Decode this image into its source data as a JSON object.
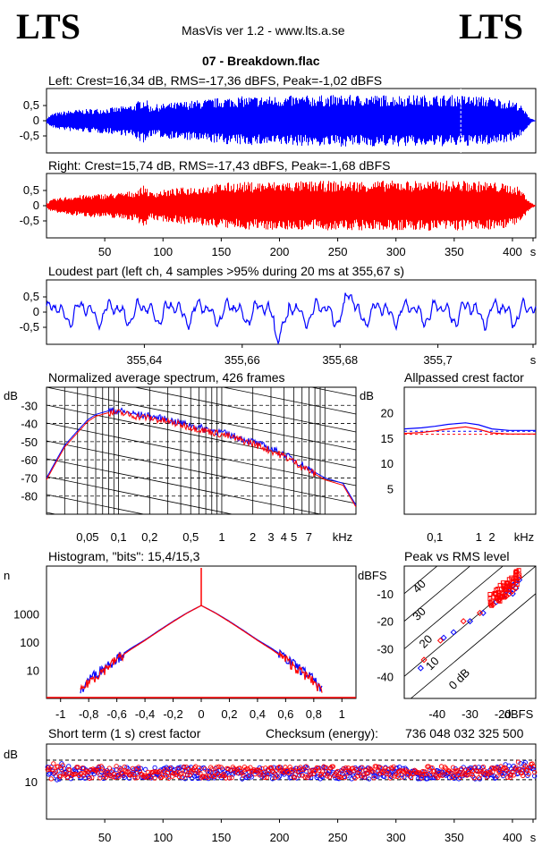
{
  "header": {
    "logo_left": "LTS",
    "logo_right": "LTS",
    "app_title": "MasVis ver 1.2 - www.lts.a.se",
    "file_title": "07 - Breakdown.flac"
  },
  "colors": {
    "left": "#0000ff",
    "right": "#ff0000",
    "grid": "#000000"
  },
  "chart_data": [
    {
      "id": "left-waveform",
      "type": "area",
      "title": "Left: Crest=16,34 dB, RMS=-17,36 dBFS, Peak=-1,02 dBFS",
      "y_ticks": [
        "0,5",
        "0",
        "-0,5"
      ],
      "ylim": [
        -1,
        1
      ],
      "xlim": [
        0,
        420
      ],
      "envelope_x": [
        0,
        5,
        20,
        40,
        60,
        75,
        80,
        85,
        88,
        95,
        120,
        160,
        200,
        250,
        300,
        350,
        380,
        395,
        405,
        410,
        415,
        420
      ],
      "envelope_y": [
        0.1,
        0.25,
        0.35,
        0.4,
        0.45,
        0.55,
        0.7,
        0.75,
        0.5,
        0.55,
        0.65,
        0.8,
        0.82,
        0.85,
        0.85,
        0.85,
        0.8,
        0.7,
        0.6,
        0.35,
        0.1,
        0.0
      ],
      "marker_x": 355.67
    },
    {
      "id": "right-waveform",
      "type": "area",
      "title": "Right: Crest=15,74 dB, RMS=-17,43 dBFS, Peak=-1,68 dBFS",
      "y_ticks": [
        "0,5",
        "0",
        "-0,5"
      ],
      "ylim": [
        -1,
        1
      ],
      "xlim": [
        0,
        420
      ],
      "x_ticks": [
        "50",
        "100",
        "150",
        "200",
        "250",
        "300",
        "350",
        "400",
        "s"
      ],
      "envelope_x": [
        0,
        5,
        20,
        40,
        60,
        75,
        80,
        85,
        88,
        95,
        120,
        160,
        200,
        250,
        300,
        350,
        380,
        395,
        405,
        410,
        415,
        420
      ],
      "envelope_y": [
        0.1,
        0.22,
        0.32,
        0.38,
        0.42,
        0.5,
        0.6,
        0.7,
        0.45,
        0.5,
        0.62,
        0.78,
        0.8,
        0.82,
        0.83,
        0.83,
        0.8,
        0.72,
        0.62,
        0.4,
        0.12,
        0.0
      ]
    },
    {
      "id": "loudest-part",
      "type": "line",
      "title": "Loudest part (left  ch, 4 samples >95% during 20 ms at 355,67 s)",
      "y_ticks": [
        "0,5",
        "0",
        "-0,5"
      ],
      "ylim": [
        -1,
        1
      ],
      "xlim": [
        355.62,
        355.72
      ],
      "x_ticks": [
        "355,64",
        "355,66",
        "355,68",
        "355,7",
        "s"
      ]
    },
    {
      "id": "average-spectrum",
      "type": "line",
      "title": "Normalized average spectrum, 426 frames",
      "ylabel": "dB",
      "xlabel": "kHz",
      "y_ticks": [
        "-30",
        "-40",
        "-50",
        "-60",
        "-70",
        "-80"
      ],
      "x_ticks": [
        "0,05",
        "0,1",
        "0,2",
        "0,5",
        "1",
        "2",
        "3",
        "4",
        "5",
        "7",
        "kHz"
      ],
      "freq_khz": [
        0.02,
        0.025,
        0.03,
        0.04,
        0.05,
        0.06,
        0.08,
        0.1,
        0.15,
        0.2,
        0.3,
        0.5,
        0.7,
        1,
        1.5,
        2,
        3,
        4,
        5,
        7,
        10,
        15,
        20
      ],
      "series": [
        {
          "name": "left",
          "values": [
            -70,
            -60,
            -52,
            -44,
            -38,
            -35,
            -33,
            -33,
            -35,
            -36,
            -38,
            -41,
            -43,
            -45,
            -48,
            -50,
            -54,
            -57,
            -60,
            -65,
            -70,
            -73,
            -85
          ]
        },
        {
          "name": "right",
          "values": [
            -71,
            -61,
            -53,
            -45,
            -39,
            -36,
            -34,
            -34,
            -36,
            -37,
            -39,
            -42,
            -44,
            -46,
            -49,
            -51,
            -55,
            -58,
            -61,
            -66,
            -71,
            -74,
            -86
          ]
        }
      ]
    },
    {
      "id": "allpassed-crest",
      "type": "line",
      "title": "Allpassed crest factor",
      "ylabel": "dB",
      "xlabel": "kHz",
      "y_ticks": [
        "20",
        "15",
        "10",
        "5"
      ],
      "ylim": [
        0,
        25
      ],
      "x_ticks": [
        "0,1",
        "1",
        "2",
        "kHz"
      ],
      "freq_khz": [
        0.02,
        0.05,
        0.1,
        0.2,
        0.5,
        1,
        2,
        5,
        10,
        20
      ],
      "series": [
        {
          "name": "left",
          "values": [
            16.8,
            17.0,
            17.3,
            17.7,
            18.0,
            17.6,
            16.8,
            16.5,
            16.5,
            16.5
          ]
        },
        {
          "name": "right",
          "values": [
            15.9,
            16.1,
            16.4,
            16.8,
            17.2,
            16.7,
            16.0,
            15.8,
            15.8,
            15.8
          ]
        }
      ],
      "reference_lines": [
        16.34,
        15.74
      ]
    },
    {
      "id": "histogram",
      "type": "line",
      "title": "Histogram, \"bits\": 15,4/15,3",
      "ylabel": "n",
      "y_ticks": [
        "1000",
        "100",
        "10"
      ],
      "x_ticks": [
        "-1",
        "-0,8",
        "-0,6",
        "-0,4",
        "-0,2",
        "0",
        "0,2",
        "0,4",
        "0,6",
        "0,8",
        "1"
      ],
      "x": [
        -0.85,
        -0.8,
        -0.7,
        -0.6,
        -0.5,
        -0.4,
        -0.3,
        -0.2,
        -0.1,
        0,
        0.1,
        0.2,
        0.3,
        0.4,
        0.5,
        0.6,
        0.7,
        0.8,
        0.85
      ],
      "series": [
        {
          "name": "left",
          "values": [
            2,
            5,
            12,
            28,
            60,
            120,
            260,
            550,
            1100,
            2000,
            1100,
            550,
            260,
            120,
            60,
            28,
            12,
            5,
            2
          ]
        },
        {
          "name": "right",
          "values": [
            2,
            4,
            10,
            25,
            55,
            115,
            250,
            530,
            1080,
            2000,
            1080,
            530,
            250,
            115,
            55,
            25,
            10,
            4,
            2
          ]
        }
      ]
    },
    {
      "id": "peak-vs-rms",
      "type": "scatter",
      "title": "Peak vs RMS level",
      "ylabel": "dBFS",
      "xlabel": "dBFS",
      "y_ticks": [
        "-10",
        "-20",
        "-30",
        "-40"
      ],
      "x_ticks": [
        "-40",
        "-30",
        "-20"
      ],
      "diagonal_labels": [
        "40",
        "30",
        "20",
        "10",
        "0 dB"
      ],
      "xlim": [
        -50,
        -10
      ],
      "ylim": [
        -48,
        0
      ],
      "series": [
        {
          "name": "left",
          "points": [
            [
              -45,
              -37
            ],
            [
              -38,
              -26
            ],
            [
              -35,
              -24
            ],
            [
              -30,
              -20
            ],
            [
              -26,
              -17
            ],
            [
              -22,
              -13
            ],
            [
              -20,
              -11
            ],
            [
              -19,
              -9
            ],
            [
              -18,
              -8
            ],
            [
              -17,
              -7
            ],
            [
              -16,
              -6
            ],
            [
              -15,
              -5
            ],
            [
              -17,
              -10
            ],
            [
              -18,
              -9
            ],
            [
              -16,
              -8
            ]
          ]
        },
        {
          "name": "right",
          "points": [
            [
              -44,
              -34
            ],
            [
              -39,
              -27
            ],
            [
              -32,
              -20
            ],
            [
              -27,
              -17
            ],
            [
              -23,
              -14
            ],
            [
              -21,
              -12
            ],
            [
              -20,
              -10
            ],
            [
              -19,
              -8
            ],
            [
              -18,
              -7
            ],
            [
              -17,
              -6
            ],
            [
              -16,
              -5
            ],
            [
              -15,
              -4
            ],
            [
              -18,
              -10
            ],
            [
              -19,
              -11
            ],
            [
              -17,
              -9
            ]
          ]
        }
      ]
    },
    {
      "id": "short-term-crest",
      "type": "scatter",
      "title": "Short term (1 s) crest factor",
      "checksum_label": "Checksum (energy):",
      "checksum_value": "736 048 032 325 500",
      "ylabel": "dB",
      "y_ticks": [
        "10"
      ],
      "x_ticks": [
        "50",
        "100",
        "150",
        "200",
        "250",
        "300",
        "350",
        "400",
        "s"
      ],
      "xlim": [
        0,
        420
      ],
      "ylim": [
        0,
        20
      ],
      "dashed_lines": [
        15.7,
        10.5
      ],
      "series": [
        {
          "name": "left",
          "mean": 12.3,
          "spread": 1.6
        },
        {
          "name": "right",
          "mean": 12.5,
          "spread": 1.6
        }
      ]
    }
  ]
}
